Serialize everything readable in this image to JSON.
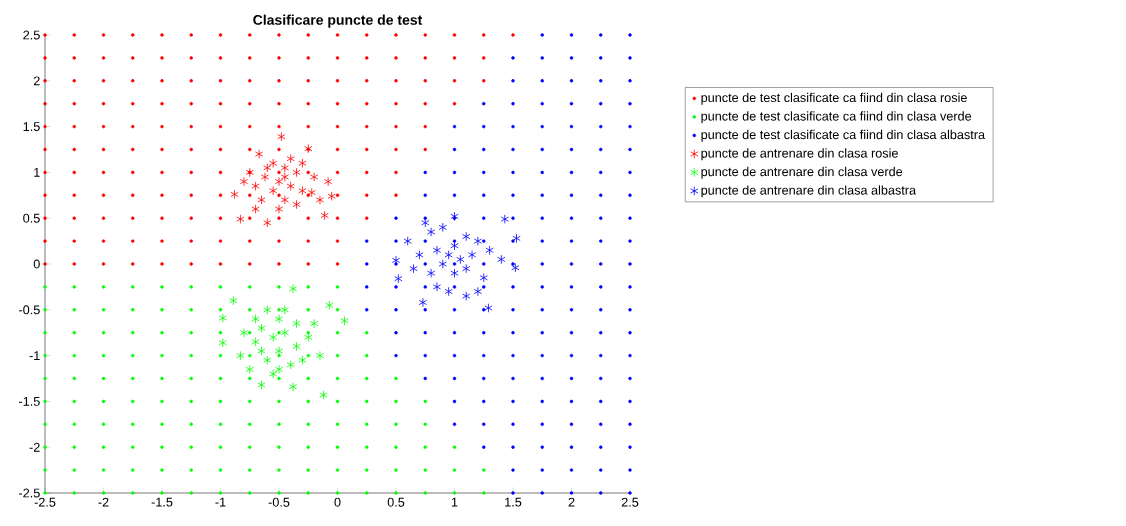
{
  "chart_data": {
    "type": "scatter",
    "title": "Clasificare puncte de test",
    "xlim": [
      -2.5,
      2.5
    ],
    "ylim": [
      -2.5,
      2.5
    ],
    "xticks": [
      -2.5,
      -2,
      -1.5,
      -1,
      -0.5,
      0,
      0.5,
      1,
      1.5,
      2,
      2.5
    ],
    "yticks": [
      -2.5,
      -2,
      -1.5,
      -1,
      -0.5,
      0,
      0.5,
      1,
      1.5,
      2,
      2.5
    ],
    "legend": "right",
    "grid": false,
    "series": [
      {
        "name": "puncte de test clasificate ca fiind din clasa rosie",
        "color": "#ff0000",
        "marker": "circle",
        "x": [
          -2.5,
          -2.25,
          -2,
          -1.75,
          -1.5,
          -1.25,
          -1,
          -0.75,
          -0.5,
          -0.25,
          0,
          0.25,
          0.5,
          0.75,
          1,
          1.25,
          1.5,
          -2.5,
          -2.25,
          -2,
          -1.75,
          -1.5,
          -1.25,
          -1,
          -0.75,
          -0.5,
          -0.25,
          0,
          0.25,
          0.5,
          0.75,
          1,
          1.25,
          -2.5,
          -2.25,
          -2,
          -1.75,
          -1.5,
          -1.25,
          -1,
          -0.75,
          -0.5,
          -0.25,
          0,
          0.25,
          0.5,
          0.75,
          1,
          1.25,
          -2.5,
          -2.25,
          -2,
          -1.75,
          -1.5,
          -1.25,
          -1,
          -0.75,
          -0.5,
          -0.25,
          0,
          0.25,
          0.5,
          0.75,
          1,
          -2.5,
          -2.25,
          -2,
          -1.75,
          -1.5,
          -1.25,
          -1,
          -0.75,
          -0.5,
          -0.25,
          0,
          0.25,
          0.5,
          0.75,
          -2.5,
          -2.25,
          -2,
          -1.75,
          -1.5,
          -1.25,
          -1,
          -0.75,
          -0.5,
          -0.25,
          0,
          0.25,
          0.5,
          0.75,
          -2.5,
          -2.25,
          -2,
          -1.75,
          -1.5,
          -1.25,
          -1,
          -0.75,
          -0.5,
          -0.25,
          0,
          0.25,
          0.5,
          -2.5,
          -2.25,
          -2,
          -1.75,
          -1.5,
          -1.25,
          -1,
          -0.75,
          -0.5,
          -0.25,
          0,
          0.25,
          0.5,
          -2.5,
          -2.25,
          -2,
          -1.75,
          -1.5,
          -1.25,
          -1,
          -0.75,
          -0.5,
          -0.25,
          0,
          0.25,
          -2.5,
          -2.25,
          -2,
          -1.75,
          -1.5,
          -1.25,
          -1,
          -0.75,
          -0.5,
          -0.25,
          0,
          -2.5,
          -2.25,
          -2,
          -1.75,
          -1.5,
          -1.25,
          -1,
          -0.75,
          -0.5,
          -0.25,
          0
        ],
        "values": [
          2.5,
          2.5,
          2.5,
          2.5,
          2.5,
          2.5,
          2.5,
          2.5,
          2.5,
          2.5,
          2.5,
          2.5,
          2.5,
          2.5,
          2.5,
          2.5,
          2.5,
          2.25,
          2.25,
          2.25,
          2.25,
          2.25,
          2.25,
          2.25,
          2.25,
          2.25,
          2.25,
          2.25,
          2.25,
          2.25,
          2.25,
          2.25,
          2.25,
          2,
          2,
          2,
          2,
          2,
          2,
          2,
          2,
          2,
          2,
          2,
          2,
          2,
          2,
          2,
          2,
          1.75,
          1.75,
          1.75,
          1.75,
          1.75,
          1.75,
          1.75,
          1.75,
          1.75,
          1.75,
          1.75,
          1.75,
          1.75,
          1.75,
          1.75,
          1.5,
          1.5,
          1.5,
          1.5,
          1.5,
          1.5,
          1.5,
          1.5,
          1.5,
          1.5,
          1.5,
          1.5,
          1.5,
          1.5,
          1.25,
          1.25,
          1.25,
          1.25,
          1.25,
          1.25,
          1.25,
          1.25,
          1.25,
          1.25,
          1.25,
          1.25,
          1.25,
          1.25,
          1,
          1,
          1,
          1,
          1,
          1,
          1,
          1,
          1,
          1,
          1,
          1,
          1,
          0.75,
          0.75,
          0.75,
          0.75,
          0.75,
          0.75,
          0.75,
          0.75,
          0.75,
          0.75,
          0.75,
          0.75,
          0.75,
          0.5,
          0.5,
          0.5,
          0.5,
          0.5,
          0.5,
          0.5,
          0.5,
          0.5,
          0.5,
          0.5,
          0.5,
          0.25,
          0.25,
          0.25,
          0.25,
          0.25,
          0.25,
          0.25,
          0.25,
          0.25,
          0.25,
          0.25,
          0,
          0,
          0,
          0,
          0,
          0,
          0,
          0,
          0,
          0,
          0
        ]
      },
      {
        "name": "puncte de test clasificate ca fiind din clasa verde",
        "color": "#00ff00",
        "marker": "circle",
        "x": [
          -2.5,
          -2.25,
          -2,
          -1.75,
          -1.5,
          -1.25,
          -1,
          -0.75,
          -0.5,
          -0.25,
          0,
          -2.5,
          -2.25,
          -2,
          -1.75,
          -1.5,
          -1.25,
          -1,
          -0.75,
          -0.5,
          -0.25,
          0,
          -2.5,
          -2.25,
          -2,
          -1.75,
          -1.5,
          -1.25,
          -1,
          -0.75,
          -0.5,
          -0.25,
          0,
          0.25,
          -2.5,
          -2.25,
          -2,
          -1.75,
          -1.5,
          -1.25,
          -1,
          -0.75,
          -0.5,
          -0.25,
          0,
          0.25,
          -2.5,
          -2.25,
          -2,
          -1.75,
          -1.5,
          -1.25,
          -1,
          -0.75,
          -0.5,
          -0.25,
          0,
          0.25,
          0.5,
          -2.5,
          -2.25,
          -2,
          -1.75,
          -1.5,
          -1.25,
          -1,
          -0.75,
          -0.5,
          -0.25,
          0,
          0.25,
          0.5,
          0.75,
          -2.5,
          -2.25,
          -2,
          -1.75,
          -1.5,
          -1.25,
          -1,
          -0.75,
          -0.5,
          -0.25,
          0,
          0.25,
          0.5,
          0.75,
          -2.5,
          -2.25,
          -2,
          -1.75,
          -1.5,
          -1.25,
          -1,
          -0.75,
          -0.5,
          -0.25,
          0,
          0.25,
          0.5,
          0.75,
          1,
          -2.5,
          -2.25,
          -2,
          -1.75,
          -1.5,
          -1.25,
          -1,
          -0.75,
          -0.5,
          -0.25,
          0,
          0.25,
          0.5,
          0.75,
          1,
          1.25,
          -2.5,
          -2.25,
          -2,
          -1.75,
          -1.5,
          -1.25,
          -1,
          -0.75,
          -0.5,
          -0.25,
          0,
          0.25,
          0.5,
          0.75,
          1,
          1.25
        ],
        "values": [
          -0.25,
          -0.25,
          -0.25,
          -0.25,
          -0.25,
          -0.25,
          -0.25,
          -0.25,
          -0.25,
          -0.25,
          -0.25,
          -0.5,
          -0.5,
          -0.5,
          -0.5,
          -0.5,
          -0.5,
          -0.5,
          -0.5,
          -0.5,
          -0.5,
          -0.5,
          -0.75,
          -0.75,
          -0.75,
          -0.75,
          -0.75,
          -0.75,
          -0.75,
          -0.75,
          -0.75,
          -0.75,
          -0.75,
          -0.75,
          -1,
          -1,
          -1,
          -1,
          -1,
          -1,
          -1,
          -1,
          -1,
          -1,
          -1,
          -1,
          -1.25,
          -1.25,
          -1.25,
          -1.25,
          -1.25,
          -1.25,
          -1.25,
          -1.25,
          -1.25,
          -1.25,
          -1.25,
          -1.25,
          -1.25,
          -1.5,
          -1.5,
          -1.5,
          -1.5,
          -1.5,
          -1.5,
          -1.5,
          -1.5,
          -1.5,
          -1.5,
          -1.5,
          -1.5,
          -1.5,
          -1.5,
          -1.75,
          -1.75,
          -1.75,
          -1.75,
          -1.75,
          -1.75,
          -1.75,
          -1.75,
          -1.75,
          -1.75,
          -1.75,
          -1.75,
          -1.75,
          -1.75,
          -2,
          -2,
          -2,
          -2,
          -2,
          -2,
          -2,
          -2,
          -2,
          -2,
          -2,
          -2,
          -2,
          -2,
          -2,
          -2.25,
          -2.25,
          -2.25,
          -2.25,
          -2.25,
          -2.25,
          -2.25,
          -2.25,
          -2.25,
          -2.25,
          -2.25,
          -2.25,
          -2.25,
          -2.25,
          -2.25,
          -2.25,
          -2.5,
          -2.5,
          -2.5,
          -2.5,
          -2.5,
          -2.5,
          -2.5,
          -2.5,
          -2.5,
          -2.5,
          -2.5,
          -2.5,
          -2.5,
          -2.5,
          -2.5,
          -2.5
        ]
      },
      {
        "name": "puncte de test clasificate ca fiind din clasa albastra",
        "color": "#0000ff",
        "marker": "circle",
        "x": [
          1.75,
          2,
          2.25,
          2.5,
          1.5,
          1.75,
          2,
          2.25,
          2.5,
          1.5,
          1.75,
          2,
          2.25,
          2.5,
          1.25,
          1.5,
          1.75,
          2,
          2.25,
          2.5,
          1,
          1.25,
          1.5,
          1.75,
          2,
          2.25,
          2.5,
          1,
          1.25,
          1.5,
          1.75,
          2,
          2.25,
          2.5,
          0.75,
          1,
          1.25,
          1.5,
          1.75,
          2,
          2.25,
          2.5,
          0.75,
          1,
          1.25,
          1.5,
          1.75,
          2,
          2.25,
          2.5,
          0.5,
          0.75,
          1,
          1.25,
          1.5,
          1.75,
          2,
          2.25,
          2.5,
          0.25,
          0.5,
          0.75,
          1,
          1.25,
          1.5,
          1.75,
          2,
          2.25,
          2.5,
          0.25,
          0.5,
          0.75,
          1,
          1.25,
          1.5,
          1.75,
          2,
          2.25,
          2.5,
          0.25,
          0.5,
          0.75,
          1,
          1.25,
          1.5,
          1.75,
          2,
          2.25,
          2.5,
          0.25,
          0.5,
          0.75,
          1,
          1.25,
          1.5,
          1.75,
          2,
          2.25,
          2.5,
          0.5,
          0.75,
          1,
          1.25,
          1.5,
          1.75,
          2,
          2.25,
          2.5,
          0.5,
          0.75,
          1,
          1.25,
          1.5,
          1.75,
          2,
          2.25,
          2.5,
          0.75,
          1,
          1.25,
          1.5,
          1.75,
          2,
          2.25,
          2.5,
          1,
          1.25,
          1.5,
          1.75,
          2,
          2.25,
          2.5,
          1,
          1.25,
          1.5,
          1.75,
          2,
          2.25,
          2.5,
          1.25,
          1.5,
          1.75,
          2,
          2.25,
          2.5,
          1.5,
          1.75,
          2,
          2.25,
          2.5,
          1.5,
          1.75,
          2,
          2.25,
          2.5
        ],
        "values": [
          2.5,
          2.5,
          2.5,
          2.5,
          2.25,
          2.25,
          2.25,
          2.25,
          2.25,
          2,
          2,
          2,
          2,
          2,
          1.75,
          1.75,
          1.75,
          1.75,
          1.75,
          1.75,
          1.5,
          1.5,
          1.5,
          1.5,
          1.5,
          1.5,
          1.5,
          1.25,
          1.25,
          1.25,
          1.25,
          1.25,
          1.25,
          1.25,
          1,
          1,
          1,
          1,
          1,
          1,
          1,
          1,
          0.75,
          0.75,
          0.75,
          0.75,
          0.75,
          0.75,
          0.75,
          0.75,
          0.5,
          0.5,
          0.5,
          0.5,
          0.5,
          0.5,
          0.5,
          0.5,
          0.5,
          0.25,
          0.25,
          0.25,
          0.25,
          0.25,
          0.25,
          0.25,
          0.25,
          0.25,
          0.25,
          0,
          0,
          0,
          0,
          0,
          0,
          0,
          0,
          0,
          0,
          -0.25,
          -0.25,
          -0.25,
          -0.25,
          -0.25,
          -0.25,
          -0.25,
          -0.25,
          -0.25,
          -0.25,
          -0.5,
          -0.5,
          -0.5,
          -0.5,
          -0.5,
          -0.5,
          -0.5,
          -0.5,
          -0.5,
          -0.5,
          -0.75,
          -0.75,
          -0.75,
          -0.75,
          -0.75,
          -0.75,
          -0.75,
          -0.75,
          -0.75,
          -1,
          -1,
          -1,
          -1,
          -1,
          -1,
          -1,
          -1,
          -1,
          -1.25,
          -1.25,
          -1.25,
          -1.25,
          -1.25,
          -1.25,
          -1.25,
          -1.25,
          -1.5,
          -1.5,
          -1.5,
          -1.5,
          -1.5,
          -1.5,
          -1.5,
          -1.75,
          -1.75,
          -1.75,
          -1.75,
          -1.75,
          -1.75,
          -1.75,
          -2,
          -2,
          -2,
          -2,
          -2,
          -2,
          -2.25,
          -2.25,
          -2.25,
          -2.25,
          -2.25,
          -2.5,
          -2.5,
          -2.5,
          -2.5,
          -2.5
        ]
      },
      {
        "name": "puncte de antrenare din clasa rosie",
        "color": "#ff0000",
        "marker": "cross",
        "x": [
          -0.48,
          -0.25,
          -0.67,
          -0.88,
          -0.83,
          -0.6,
          -0.11,
          -0.05,
          -0.08,
          -0.55,
          -0.45,
          -0.35,
          -0.62,
          -0.5,
          -0.4,
          -0.7,
          -0.3,
          -0.55,
          -0.45,
          -0.65,
          -0.2,
          -0.35,
          -0.75,
          -0.5,
          -0.22,
          -0.6,
          -0.4,
          -0.8,
          -0.3,
          -0.15,
          -0.7,
          -0.45
        ],
        "values": [
          1.39,
          1.26,
          1.2,
          0.76,
          0.49,
          0.45,
          0.53,
          0.74,
          0.9,
          1.1,
          1.05,
          1.0,
          0.95,
          0.9,
          0.85,
          0.85,
          0.8,
          0.8,
          0.7,
          0.7,
          0.95,
          0.65,
          1.0,
          0.6,
          0.78,
          1.05,
          1.15,
          0.9,
          1.1,
          0.7,
          0.6,
          0.95
        ]
      },
      {
        "name": "puncte de antrenare din clasa verde",
        "color": "#00ff00",
        "marker": "cross",
        "x": [
          -0.38,
          -0.89,
          -0.98,
          -0.98,
          0.06,
          -0.07,
          -0.12,
          -0.38,
          -0.65,
          -0.83,
          -0.6,
          -0.5,
          -0.65,
          -0.55,
          -0.45,
          -0.7,
          -0.35,
          -0.5,
          -0.6,
          -0.4,
          -0.25,
          -0.75,
          -0.3,
          -0.55,
          -0.45,
          -0.2,
          -0.65,
          -0.35,
          -0.8,
          -0.15,
          -0.5,
          -0.7
        ],
        "values": [
          -0.27,
          -0.4,
          -0.59,
          -0.86,
          -0.62,
          -0.45,
          -1.43,
          -1.34,
          -1.32,
          -1.0,
          -0.5,
          -0.6,
          -0.7,
          -0.8,
          -0.75,
          -0.85,
          -0.9,
          -0.95,
          -1.05,
          -1.1,
          -0.8,
          -1.15,
          -1.05,
          -1.2,
          -0.5,
          -0.65,
          -0.95,
          -0.65,
          -0.75,
          -1.0,
          -1.15,
          -0.6
        ]
      },
      {
        "name": "puncte de antrenare din clasa albastra",
        "color": "#0000ff",
        "marker": "cross",
        "x": [
          1.0,
          1.43,
          1.53,
          0.5,
          0.73,
          1.29,
          0.52,
          1.52,
          0.8,
          0.9,
          1.1,
          1.2,
          0.85,
          0.95,
          1.05,
          1.15,
          1.3,
          0.7,
          0.65,
          0.8,
          0.9,
          1.0,
          1.1,
          1.25,
          0.95,
          1.1,
          0.85,
          1.2,
          1.4,
          0.6,
          1.0,
          0.75
        ],
        "values": [
          0.52,
          0.49,
          0.28,
          0.04,
          -0.42,
          -0.48,
          -0.16,
          -0.04,
          0.35,
          0.4,
          0.3,
          0.25,
          0.15,
          0.1,
          0.05,
          0.1,
          0.15,
          0.1,
          -0.05,
          -0.1,
          0.0,
          -0.1,
          -0.05,
          -0.15,
          -0.3,
          -0.35,
          -0.25,
          -0.3,
          0.05,
          0.25,
          0.2,
          0.45
        ]
      }
    ]
  }
}
